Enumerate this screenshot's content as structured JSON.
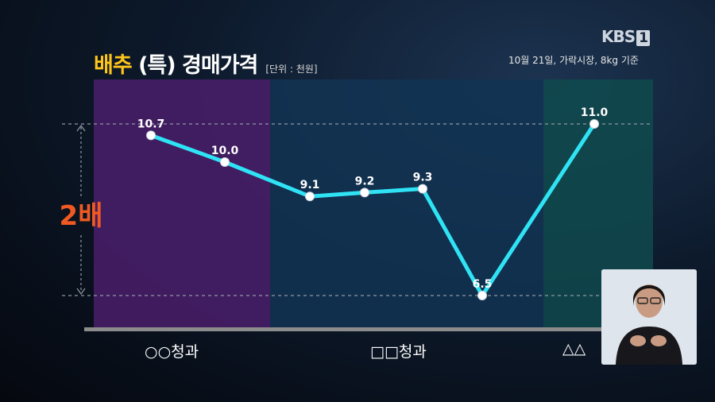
{
  "broadcaster": {
    "logo_text": "KBS",
    "channel": "1"
  },
  "chart_data": {
    "type": "line",
    "title_highlight": "배추",
    "title_rest": "(특) 경매가격",
    "unit": "[단위 : 천원]",
    "subtitle": "10월 21일, 가락시장, 8kg 기준",
    "annotation": "2배",
    "categories": [
      "○○청과",
      "□□청과",
      "△△청과"
    ],
    "category_labels_visible": [
      "○○청과",
      "□□청과",
      "△△"
    ],
    "points": [
      {
        "label": "10.7",
        "value": 10.7,
        "group": 0
      },
      {
        "label": "10.0",
        "value": 10.0,
        "group": 0
      },
      {
        "label": "9.1",
        "value": 9.1,
        "group": 1
      },
      {
        "label": "9.2",
        "value": 9.2,
        "group": 1
      },
      {
        "label": "9.3",
        "value": 9.3,
        "group": 1
      },
      {
        "label": "6.5",
        "value": 6.5,
        "group": 1
      },
      {
        "label": "11.0",
        "value": 11.0,
        "group": 2
      }
    ],
    "ylim": [
      5.5,
      11.0
    ],
    "reference_lines": [
      11.0,
      6.5
    ],
    "colors": {
      "line": "#2fe3f5",
      "group0_bg": "#4a1e6b",
      "group1_bg": "#123454",
      "group2_bg": "#0f4a4e",
      "title_accent": "#ffc61a",
      "annotation": "#f05a22"
    }
  }
}
